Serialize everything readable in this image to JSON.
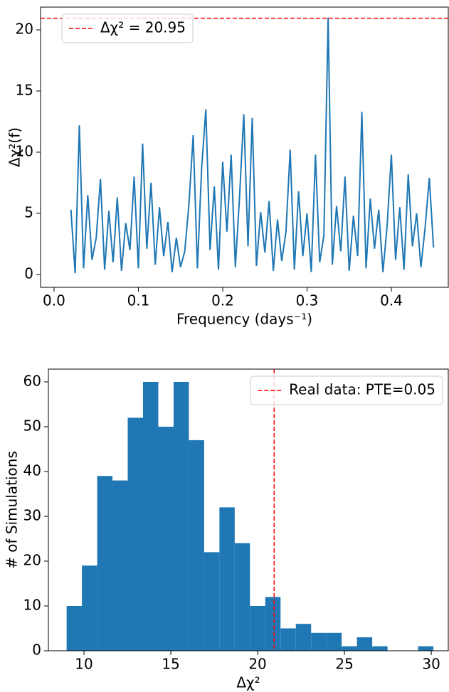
{
  "chart_data": [
    {
      "type": "line",
      "xlabel": "Frequency (days⁻¹)",
      "ylabel": "Δχ²(f)",
      "x": [
        0.02,
        0.025,
        0.03,
        0.035,
        0.04,
        0.045,
        0.05,
        0.055,
        0.06,
        0.065,
        0.07,
        0.075,
        0.08,
        0.085,
        0.09,
        0.095,
        0.1,
        0.105,
        0.11,
        0.115,
        0.12,
        0.125,
        0.13,
        0.135,
        0.14,
        0.145,
        0.15,
        0.155,
        0.16,
        0.165,
        0.17,
        0.175,
        0.18,
        0.185,
        0.19,
        0.195,
        0.2,
        0.205,
        0.21,
        0.215,
        0.22,
        0.225,
        0.23,
        0.235,
        0.24,
        0.245,
        0.25,
        0.255,
        0.26,
        0.265,
        0.27,
        0.275,
        0.28,
        0.285,
        0.29,
        0.295,
        0.3,
        0.305,
        0.31,
        0.315,
        0.32,
        0.325,
        0.33,
        0.335,
        0.34,
        0.345,
        0.35,
        0.355,
        0.36,
        0.365,
        0.37,
        0.375,
        0.38,
        0.385,
        0.39,
        0.395,
        0.4,
        0.405,
        0.41,
        0.415,
        0.42,
        0.425,
        0.43,
        0.435,
        0.44,
        0.445,
        0.45
      ],
      "values": [
        5.3,
        0.1,
        12.2,
        0.5,
        6.5,
        1.2,
        3.0,
        7.8,
        0.4,
        5.2,
        1.0,
        6.3,
        0.3,
        4.2,
        2.0,
        8.0,
        0.5,
        10.7,
        2.1,
        7.5,
        0.8,
        5.5,
        1.5,
        4.3,
        0.2,
        3.0,
        0.6,
        1.9,
        5.8,
        11.4,
        0.5,
        8.7,
        13.5,
        2.0,
        7.2,
        0.4,
        9.2,
        3.5,
        9.8,
        0.6,
        6.4,
        13.1,
        2.3,
        12.8,
        0.7,
        5.1,
        1.8,
        6.0,
        0.3,
        4.5,
        1.1,
        3.5,
        10.2,
        0.4,
        6.8,
        1.5,
        5.0,
        0.2,
        9.8,
        1.0,
        3.2,
        21.0,
        0.8,
        5.6,
        1.9,
        8.0,
        0.3,
        4.8,
        1.5,
        13.3,
        0.5,
        6.2,
        2.1,
        5.3,
        0.2,
        4.0,
        9.8,
        1.2,
        5.5,
        0.4,
        8.2,
        2.3,
        5.0,
        0.6,
        3.8,
        7.9,
        2.2
      ],
      "color": "#1f77b4",
      "xlim": [
        -0.016,
        0.4675
      ],
      "ylim": [
        -1.05,
        21.86
      ],
      "xticks": [
        {
          "value": 0,
          "label": "0.0"
        },
        0.1,
        0.2,
        0.3,
        0.4
      ],
      "yticks": [
        0,
        5,
        10,
        15,
        20
      ],
      "hline": {
        "value": 20.95,
        "label": "Δχ² = 20.95",
        "color": "#ff0000"
      },
      "legend": "upper left"
    },
    {
      "type": "histogram",
      "xlabel": "Δχ²",
      "ylabel": "# of Simulations",
      "bins": [
        9.0,
        9.88,
        10.76,
        11.64,
        12.52,
        13.4,
        14.28,
        15.16,
        16.04,
        16.92,
        17.8,
        18.68,
        19.56,
        20.44,
        21.32,
        22.2,
        23.08,
        23.96,
        24.84,
        25.72,
        26.6,
        27.48,
        28.36,
        29.24,
        30.12
      ],
      "values": [
        10,
        19,
        39,
        38,
        52,
        60,
        50,
        60,
        47,
        22,
        32,
        24,
        10,
        12,
        5,
        6,
        4,
        4,
        1,
        3,
        1,
        0,
        0,
        1
      ],
      "color": "#1f77b4",
      "xlim": [
        7.95,
        30.98
      ],
      "ylim": [
        0,
        62.85
      ],
      "xticks": [
        10,
        15,
        20,
        25,
        30
      ],
      "yticks": [
        0,
        10,
        20,
        30,
        40,
        50,
        60
      ],
      "vline": {
        "value": 20.95,
        "label": "Real data: PTE=0.05",
        "color": "#ff0000"
      },
      "legend": "upper right"
    }
  ]
}
